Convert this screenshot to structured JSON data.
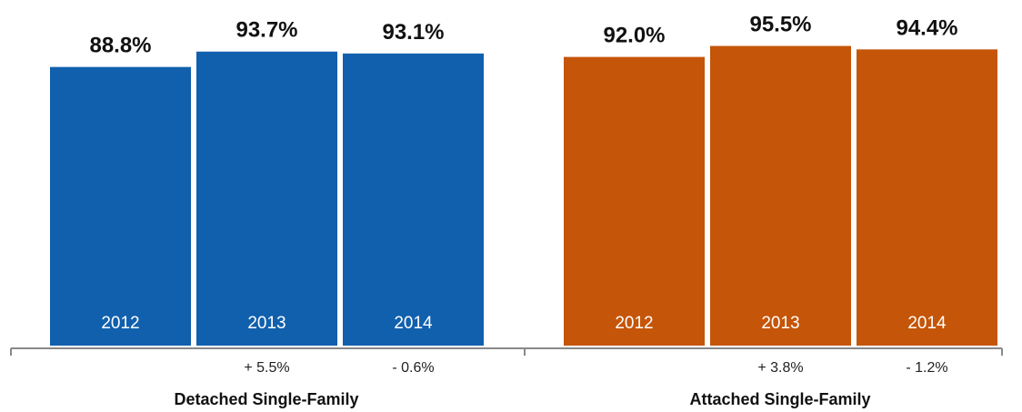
{
  "chart_data": {
    "type": "bar",
    "ylim": [
      0,
      100
    ],
    "groups": [
      {
        "name": "Detached Single-Family",
        "color": "#1160ad",
        "bars": [
          {
            "category": "2012",
            "value": 88.8,
            "value_label": "88.8%",
            "change_label": ""
          },
          {
            "category": "2013",
            "value": 93.7,
            "value_label": "93.7%",
            "change_label": "+ 5.5%"
          },
          {
            "category": "2014",
            "value": 93.1,
            "value_label": "93.1%",
            "change_label": "- 0.6%"
          }
        ]
      },
      {
        "name": "Attached Single-Family",
        "color": "#c55508",
        "bars": [
          {
            "category": "2012",
            "value": 92.0,
            "value_label": "92.0%",
            "change_label": ""
          },
          {
            "category": "2013",
            "value": 95.5,
            "value_label": "95.5%",
            "change_label": "+ 3.8%"
          },
          {
            "category": "2014",
            "value": 94.4,
            "value_label": "94.4%",
            "change_label": "- 1.2%"
          }
        ]
      }
    ]
  }
}
